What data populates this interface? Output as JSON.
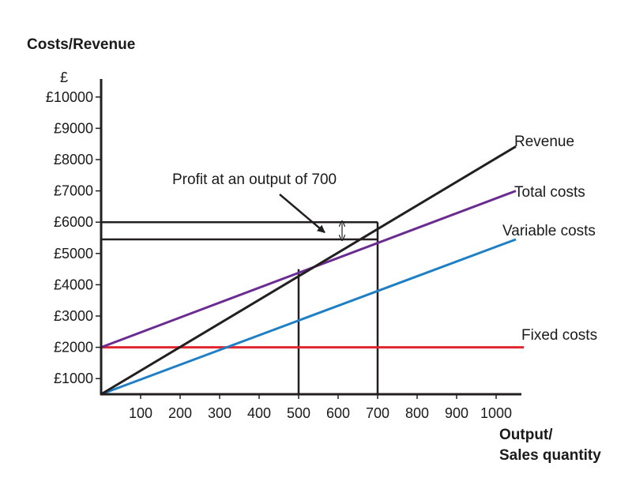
{
  "chart_data": {
    "type": "line",
    "ylabel": "Costs/Revenue",
    "yunit": "£",
    "xlabel_line1": "Output/",
    "xlabel_line2": "Sales quantity",
    "xlim": [
      0,
      1050
    ],
    "ylim": [
      500,
      10500
    ],
    "x_ticks": [
      {
        "value": 100,
        "label": "100"
      },
      {
        "value": 200,
        "label": "200"
      },
      {
        "value": 300,
        "label": "300"
      },
      {
        "value": 400,
        "label": "400"
      },
      {
        "value": 500,
        "label": "500"
      },
      {
        "value": 600,
        "label": "600"
      },
      {
        "value": 700,
        "label": "700"
      },
      {
        "value": 800,
        "label": "800"
      },
      {
        "value": 900,
        "label": "900"
      },
      {
        "value": 1000,
        "label": "1000"
      }
    ],
    "y_ticks": [
      {
        "value": 1000,
        "label": "£1000"
      },
      {
        "value": 2000,
        "label": "£2000"
      },
      {
        "value": 3000,
        "label": "£3000"
      },
      {
        "value": 4000,
        "label": "£4000"
      },
      {
        "value": 5000,
        "label": "£5000"
      },
      {
        "value": 6000,
        "label": "£6000"
      },
      {
        "value": 7000,
        "label": "£7000"
      },
      {
        "value": 8000,
        "label": "£8000"
      },
      {
        "value": 9000,
        "label": "£9000"
      },
      {
        "value": 10000,
        "label": "£10000"
      }
    ],
    "series": [
      {
        "name": "Revenue",
        "color": "#231f20",
        "x": [
          0,
          1050
        ],
        "y": [
          500,
          8420
        ]
      },
      {
        "name": "Total costs",
        "color": "#6a2c91",
        "x": [
          0,
          1050
        ],
        "y": [
          2000,
          7000
        ]
      },
      {
        "name": "Variable costs",
        "color": "#1f7fc4",
        "x": [
          0,
          1050
        ],
        "y": [
          500,
          5450
        ]
      },
      {
        "name": "Fixed costs",
        "color": "#e0262e",
        "x": [
          0,
          1070
        ],
        "y": [
          2000,
          2000
        ]
      }
    ],
    "reference_lines": {
      "color": "#231f20",
      "verticals": [
        {
          "x": 500,
          "y": 4500
        },
        {
          "x": 700,
          "y": 6000
        }
      ],
      "horizontals": [
        {
          "y": 6000,
          "x_end": 700
        },
        {
          "y": 5450,
          "x_end": 700
        }
      ]
    },
    "annotation": {
      "text": "Profit at an output of 700",
      "arrow_tip": {
        "x": 570,
        "y": 6000
      },
      "measure_x": 610,
      "measure_range": [
        5450,
        6000
      ]
    }
  }
}
